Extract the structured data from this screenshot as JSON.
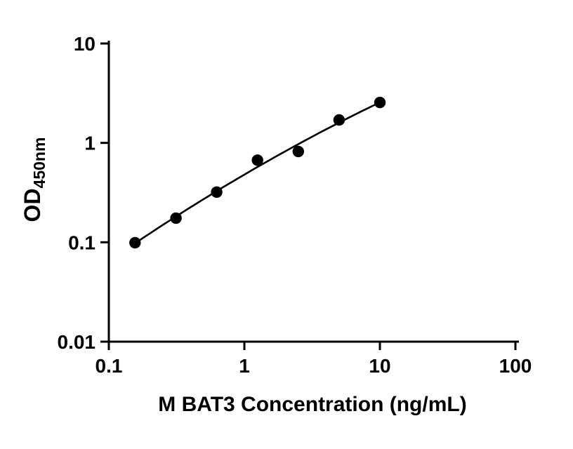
{
  "chart_data": {
    "type": "scatter",
    "title": "",
    "xlabel": "M BAT3 Concentration (ng/mL)",
    "ylabel": "OD450nm",
    "ylabel_main": "OD",
    "ylabel_sub": "450nm",
    "x_scale": "log",
    "y_scale": "log",
    "xlim": [
      0.1,
      100
    ],
    "ylim": [
      0.01,
      10
    ],
    "x_ticks": [
      0.1,
      1,
      10,
      100
    ],
    "x_tick_labels": [
      "0.1",
      "1",
      "10",
      "100"
    ],
    "y_ticks": [
      0.01,
      0.1,
      1,
      10
    ],
    "y_tick_labels": [
      "0.01",
      "0.1",
      "1",
      "10"
    ],
    "points": {
      "x": [
        0.156,
        0.313,
        0.625,
        1.25,
        2.5,
        5,
        10
      ],
      "y": [
        0.099,
        0.175,
        0.32,
        0.67,
        0.82,
        1.7,
        2.55
      ]
    },
    "fit": "smooth regression curve through points in log-log space",
    "marker_color": "#000000",
    "line_color": "#000000",
    "axis_color": "#000000",
    "background": "#ffffff",
    "grid": false,
    "legend": "none"
  }
}
